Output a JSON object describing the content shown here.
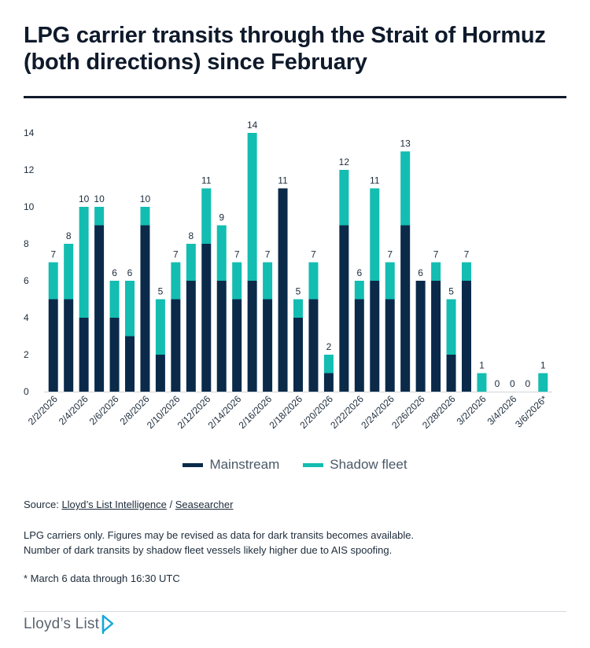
{
  "header": {
    "title": "LPG carrier transits through the Strait of Hormuz (both directions) since February"
  },
  "colors": {
    "mainstream": "#0b2a4a",
    "shadow": "#13bdb1",
    "axis": "#d0d4d9",
    "text": "#1c2b3a"
  },
  "chart_data": {
    "type": "bar",
    "stacked": true,
    "title": "LPG carrier transits through the Strait of Hormuz (both directions) since February",
    "xlabel": "",
    "ylabel": "",
    "ylim": [
      0,
      14
    ],
    "yticks": [
      0,
      2,
      4,
      6,
      8,
      10,
      12,
      14
    ],
    "grid": false,
    "legend_position": "bottom-center",
    "categories": [
      "2/2/2026",
      "2/3/2026",
      "2/4/2026",
      "2/5/2026",
      "2/6/2026",
      "2/7/2026",
      "2/8/2026",
      "2/9/2026",
      "2/10/2026",
      "2/11/2026",
      "2/12/2026",
      "2/13/2026",
      "2/14/2026",
      "2/15/2026",
      "2/16/2026",
      "2/17/2026",
      "2/18/2026",
      "2/19/2026",
      "2/20/2026",
      "2/21/2026",
      "2/22/2026",
      "2/23/2026",
      "2/24/2026",
      "2/25/2026",
      "2/26/2026",
      "2/27/2026",
      "2/28/2026",
      "3/1/2026",
      "3/2/2026",
      "3/3/2026",
      "3/4/2026",
      "3/5/2026",
      "3/6/2026*"
    ],
    "tick_labels": [
      "2/2/2026",
      "",
      "2/4/2026",
      "",
      "2/6/2026",
      "",
      "2/8/2026",
      "",
      "2/10/2026",
      "",
      "2/12/2026",
      "",
      "2/14/2026",
      "",
      "2/16/2026",
      "",
      "2/18/2026",
      "",
      "2/20/2026",
      "",
      "2/22/2026",
      "",
      "2/24/2026",
      "",
      "2/26/2026",
      "",
      "2/28/2026",
      "",
      "3/2/2026",
      "",
      "3/4/2026",
      "",
      "3/6/2026*"
    ],
    "series": [
      {
        "name": "Mainstream",
        "values": [
          5,
          5,
          4,
          9,
          4,
          3,
          9,
          2,
          5,
          6,
          8,
          6,
          5,
          6,
          5,
          11,
          4,
          5,
          1,
          9,
          5,
          6,
          5,
          9,
          6,
          6,
          2,
          6,
          0,
          0,
          0,
          0,
          0
        ]
      },
      {
        "name": "Shadow fleet",
        "values": [
          2,
          3,
          6,
          1,
          2,
          3,
          1,
          3,
          2,
          2,
          3,
          3,
          2,
          8,
          2,
          0,
          1,
          2,
          1,
          3,
          1,
          5,
          2,
          4,
          0,
          1,
          3,
          1,
          1,
          0,
          0,
          0,
          1
        ]
      }
    ],
    "totals": [
      7,
      8,
      10,
      10,
      6,
      6,
      10,
      5,
      7,
      8,
      11,
      9,
      7,
      14,
      7,
      11,
      5,
      7,
      2,
      12,
      6,
      11,
      7,
      13,
      6,
      7,
      5,
      7,
      1,
      0,
      0,
      0,
      1
    ]
  },
  "legend": [
    {
      "label": "Mainstream",
      "color_key": "mainstream"
    },
    {
      "label": "Shadow fleet",
      "color_key": "shadow"
    }
  ],
  "source": {
    "prefix": "Source:",
    "link1": "Lloyd’s List Intelligence",
    "separator": "/",
    "link2": "Seasearcher"
  },
  "notes": {
    "line1": "LPG carriers only. Figures may be revised as data for dark transits becomes available.",
    "line2": "Number of dark transits by shadow fleet vessels likely higher due to AIS spoofing."
  },
  "footnote": "* March 6 data through 16:30 UTC",
  "footer": {
    "logo_text": "Lloyd’s List"
  }
}
